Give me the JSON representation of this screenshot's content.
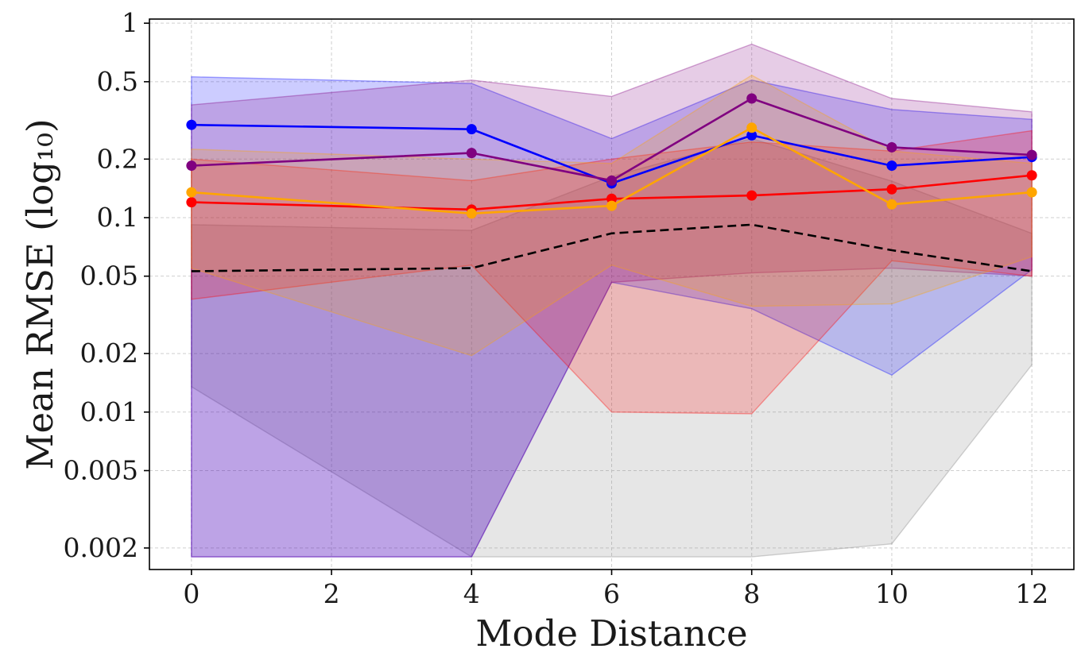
{
  "chart_data": {
    "type": "line",
    "title": "",
    "xlabel": "Mode Distance",
    "ylabel": "Mean RMSE (log₁₀)",
    "yscale": "log",
    "xlim": [
      -0.6,
      12.6
    ],
    "ylim": [
      0.00155,
      1.05
    ],
    "grid": true,
    "legend": "none",
    "x": [
      0,
      4,
      6,
      8,
      10,
      12
    ],
    "x_ticks": [
      0,
      2,
      4,
      6,
      8,
      10,
      12
    ],
    "x_tick_labels": [
      "0",
      "2",
      "4",
      "6",
      "8",
      "10",
      "12"
    ],
    "y_ticks": [
      1,
      0.5,
      0.2,
      0.1,
      0.05,
      0.02,
      0.01,
      0.005,
      0.002
    ],
    "y_tick_labels": [
      "1",
      "0.5",
      "0.2",
      "0.1",
      "0.05",
      "0.02",
      "0.01",
      "0.005",
      "0.002"
    ],
    "series": [
      {
        "color": "#808080",
        "line_style": "dashed",
        "line_color": "#000000",
        "markers": false,
        "values": [
          0.053,
          0.055,
          0.083,
          0.092,
          0.068,
          0.053
        ],
        "band_lower": [
          0.0135,
          0.0018,
          0.0018,
          0.0018,
          0.0021,
          0.0175
        ],
        "band_upper": [
          0.092,
          0.086,
          0.163,
          0.255,
          0.154,
          0.083
        ]
      },
      {
        "color": "#0000ff",
        "line_style": "solid",
        "markers": true,
        "values": [
          0.3,
          0.285,
          0.15,
          0.265,
          0.185,
          0.205
        ],
        "band_lower": [
          0.0018,
          0.0018,
          0.0465,
          0.034,
          0.0155,
          0.054
        ],
        "band_upper": [
          0.53,
          0.49,
          0.255,
          0.51,
          0.36,
          0.32
        ]
      },
      {
        "color": "#800080",
        "line_style": "solid",
        "markers": true,
        "values": [
          0.185,
          0.215,
          0.155,
          0.41,
          0.23,
          0.21
        ],
        "band_lower": [
          0.0018,
          0.0018,
          0.0465,
          0.052,
          0.055,
          0.05
        ],
        "band_upper": [
          0.38,
          0.51,
          0.42,
          0.78,
          0.41,
          0.35
        ]
      },
      {
        "color": "#ff0000",
        "line_style": "solid",
        "markers": true,
        "values": [
          0.12,
          0.11,
          0.125,
          0.13,
          0.14,
          0.165
        ],
        "band_lower": [
          0.038,
          0.057,
          0.01,
          0.0098,
          0.06,
          0.05
        ],
        "band_upper": [
          0.2,
          0.155,
          0.2,
          0.245,
          0.22,
          0.28
        ]
      },
      {
        "color": "#ffa500",
        "line_style": "solid",
        "markers": true,
        "values": [
          0.135,
          0.105,
          0.115,
          0.29,
          0.117,
          0.135
        ],
        "band_lower": [
          0.055,
          0.0195,
          0.057,
          0.035,
          0.036,
          0.063
        ],
        "band_upper": [
          0.225,
          0.2,
          0.19,
          0.54,
          0.22,
          0.19
        ]
      }
    ]
  }
}
